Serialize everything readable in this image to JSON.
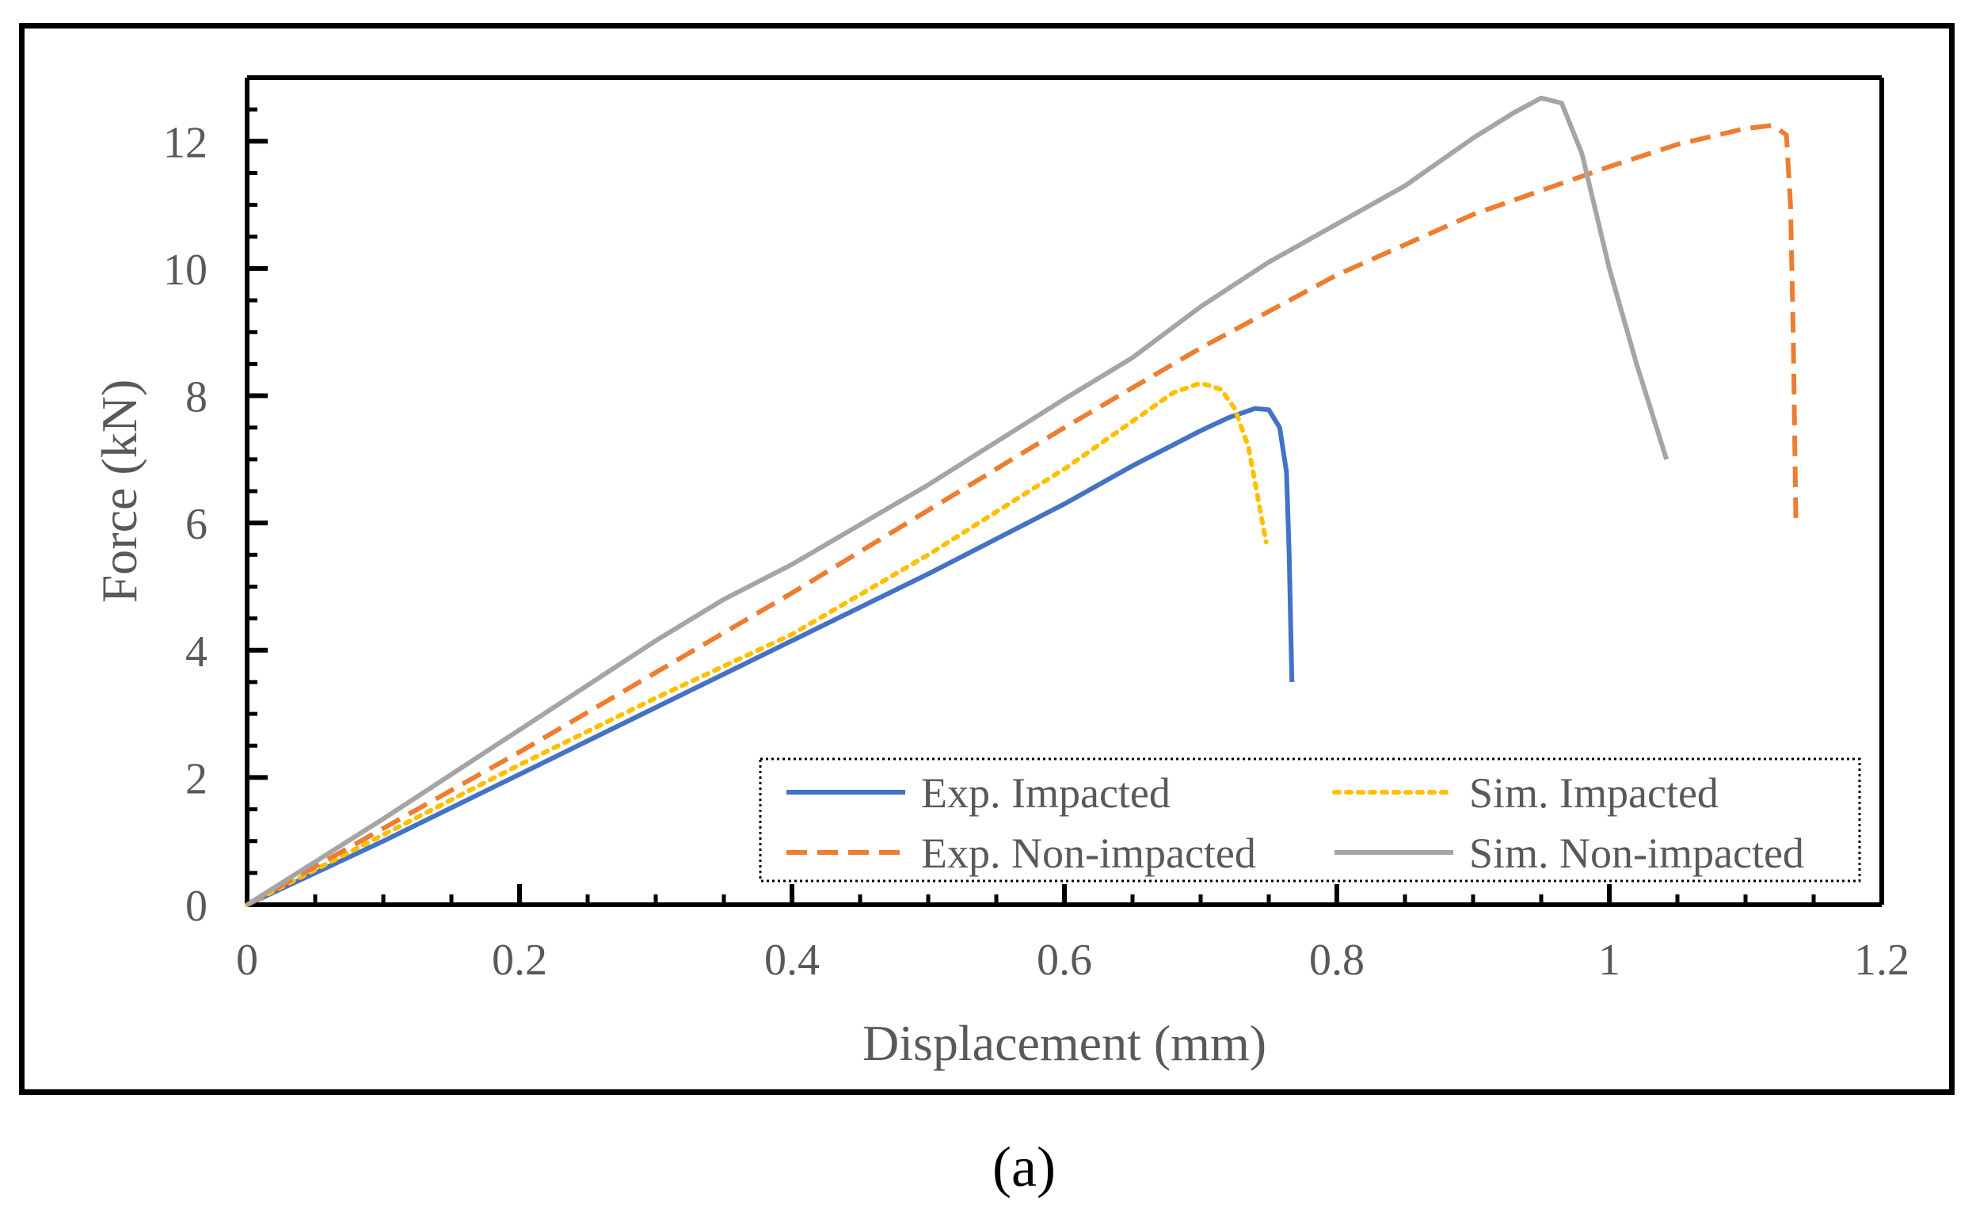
{
  "chart_data": {
    "type": "line",
    "title": "",
    "xlabel": "Displacement (mm)",
    "ylabel": "Force (kN)",
    "xlim": [
      0,
      1.2
    ],
    "ylim": [
      0,
      13
    ],
    "xticks": [
      0,
      0.2,
      0.4,
      0.6,
      0.8,
      1,
      1.2
    ],
    "xtick_labels": [
      "0",
      "0.2",
      "0.4",
      "0.6",
      "0.8",
      "1",
      "1.2"
    ],
    "yticks": [
      0,
      2,
      4,
      6,
      8,
      10,
      12
    ],
    "ytick_labels": [
      "0",
      "2",
      "4",
      "6",
      "8",
      "10",
      "12"
    ],
    "grid": false,
    "legend_position": "bottom-right",
    "caption": "(a)",
    "series": [
      {
        "name": "Exp. Impacted",
        "color": "#4472C4",
        "style": "solid",
        "x": [
          0,
          0.1,
          0.2,
          0.3,
          0.4,
          0.5,
          0.6,
          0.65,
          0.7,
          0.72,
          0.74,
          0.75,
          0.758,
          0.763,
          0.765,
          0.766,
          0.767
        ],
        "y": [
          0,
          1.0,
          2.05,
          3.1,
          4.15,
          5.2,
          6.3,
          6.9,
          7.45,
          7.65,
          7.8,
          7.78,
          7.5,
          6.8,
          5.5,
          4.5,
          3.5
        ]
      },
      {
        "name": "Sim. Impacted",
        "color": "#FFC000",
        "style": "dotted",
        "x": [
          0,
          0.1,
          0.2,
          0.3,
          0.4,
          0.5,
          0.6,
          0.65,
          0.68,
          0.7,
          0.715,
          0.725,
          0.735,
          0.742,
          0.748
        ],
        "y": [
          0,
          1.1,
          2.2,
          3.25,
          4.25,
          5.5,
          6.85,
          7.6,
          8.05,
          8.2,
          8.1,
          7.8,
          7.2,
          6.4,
          5.7
        ]
      },
      {
        "name": "Exp. Non-impacted",
        "color": "#ED7D31",
        "style": "dashed",
        "x": [
          0,
          0.1,
          0.2,
          0.3,
          0.4,
          0.5,
          0.6,
          0.7,
          0.8,
          0.9,
          1.0,
          1.05,
          1.1,
          1.12,
          1.13,
          1.133,
          1.135,
          1.136,
          1.137
        ],
        "y": [
          0,
          1.2,
          2.4,
          3.65,
          4.9,
          6.2,
          7.5,
          8.75,
          9.9,
          10.85,
          11.6,
          11.95,
          12.2,
          12.25,
          12.1,
          11.0,
          9.0,
          7.5,
          6.0
        ]
      },
      {
        "name": "Sim. Non-impacted",
        "color": "#A5A5A5",
        "style": "solid",
        "x": [
          0,
          0.1,
          0.2,
          0.3,
          0.35,
          0.4,
          0.5,
          0.6,
          0.65,
          0.7,
          0.75,
          0.8,
          0.85,
          0.9,
          0.93,
          0.95,
          0.965,
          0.98,
          1.0,
          1.02,
          1.042
        ],
        "y": [
          0,
          1.35,
          2.75,
          4.15,
          4.8,
          5.35,
          6.6,
          7.95,
          8.6,
          9.4,
          10.1,
          10.7,
          11.3,
          12.05,
          12.45,
          12.68,
          12.6,
          11.8,
          10.0,
          8.5,
          7.0
        ]
      }
    ]
  }
}
